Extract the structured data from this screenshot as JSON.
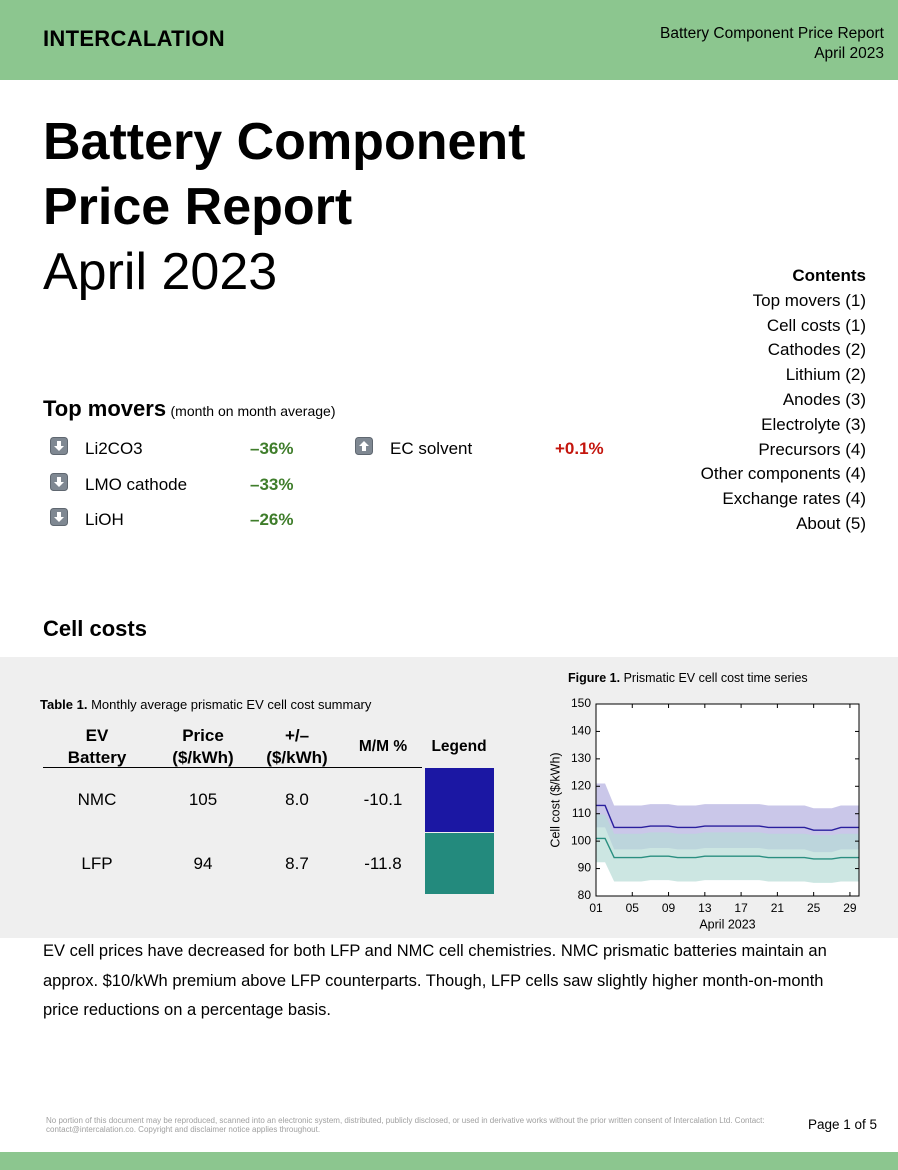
{
  "header": {
    "brand": "INTERCALATION",
    "report_title": "Battery Component Price Report",
    "report_date": "April 2023"
  },
  "title": {
    "lines": [
      "Battery Component",
      "Price Report"
    ],
    "date": "April 2023"
  },
  "contents": {
    "heading": "Contents",
    "items": [
      "Top movers (1)",
      "Cell costs (1)",
      "Cathodes (2)",
      "Lithium (2)",
      "Anodes (3)",
      "Electrolyte (3)",
      "Precursors (4)",
      "Other components (4)",
      "Exchange rates (4)",
      "About (5)"
    ]
  },
  "top_movers": {
    "heading": "Top movers",
    "note": "(month on month average)",
    "items": [
      {
        "name": "Li2CO3",
        "change": "–36%",
        "direction": "down"
      },
      {
        "name": "LMO cathode",
        "change": "–33%",
        "direction": "down"
      },
      {
        "name": "LiOH",
        "change": "–26%",
        "direction": "down"
      },
      {
        "name": "EC solvent",
        "change": "+0.1%",
        "direction": "up"
      }
    ]
  },
  "cell_costs": {
    "heading": "Cell costs",
    "table": {
      "label": "Table 1.",
      "caption": "Monthly average prismatic EV cell cost summary",
      "columns": [
        "EV Battery",
        "Price ($/kWh)",
        "+/– ($/kWh)",
        "M/M %",
        "Legend"
      ],
      "rows": [
        {
          "cells": [
            "NMC",
            "105",
            "8.0",
            "-10.1"
          ],
          "color": "#1b17a3"
        },
        {
          "cells": [
            "LFP",
            "94",
            "8.7",
            "-11.8"
          ],
          "color": "#238a7d"
        }
      ]
    },
    "paragraph": "EV cell prices have decreased for both LFP and NMC cell chemistries. NMC prismatic batteries maintain an approx. $10/kWh premium above LFP counterparts. Though, LFP cells saw slightly higher month-on-month price reductions on a percentage basis."
  },
  "chart_data": {
    "type": "line",
    "figure_label": "Figure 1.",
    "title": "Prismatic EV cell cost time series",
    "xlabel": "April 2023",
    "ylabel": "Cell cost ($/kWh)",
    "x": [
      1,
      2,
      3,
      4,
      5,
      6,
      7,
      8,
      9,
      10,
      11,
      12,
      13,
      14,
      15,
      16,
      17,
      18,
      19,
      20,
      21,
      22,
      23,
      24,
      25,
      26,
      27,
      28,
      29,
      30
    ],
    "xlim": [
      1,
      30
    ],
    "xticks": [
      {
        "value": 1,
        "label": "01"
      },
      {
        "value": 5,
        "label": "05"
      },
      {
        "value": 9,
        "label": "09"
      },
      13,
      17,
      21,
      25,
      29
    ],
    "ylim": [
      80,
      150
    ],
    "yticks": [
      80,
      90,
      100,
      110,
      120,
      130,
      140,
      150
    ],
    "series": [
      {
        "color": "#2a1f9e",
        "band_color": "#b3afdf",
        "error": 8.0,
        "values": [
          113,
          113,
          105,
          105,
          105,
          105,
          105.5,
          105.5,
          105.5,
          105,
          105,
          105,
          105.5,
          105.5,
          105.5,
          105.5,
          105.5,
          105.5,
          105.5,
          105,
          105,
          105,
          105,
          105,
          104,
          104,
          104,
          105,
          105,
          105
        ]
      },
      {
        "color": "#2a8f80",
        "band_color": "#b7dcd5",
        "error": 8.7,
        "values": [
          101,
          101,
          94,
          94,
          94,
          94,
          94.5,
          94.5,
          94.5,
          94,
          94,
          94,
          94.5,
          94.5,
          94.5,
          94.5,
          94.5,
          94.5,
          94.5,
          94,
          94,
          94,
          94,
          94,
          93.5,
          93.5,
          93.5,
          94,
          94,
          94
        ]
      }
    ]
  },
  "footer": {
    "disclaimer": "No portion of this document may be reproduced, scanned into an electronic system, distributed, publicly disclosed, or used in derivative works without the prior written consent of Intercalation Ltd. Contact: contact@intercalation.co. Copyright and disclaimer notice applies throughout.",
    "page": "Page 1 of 5"
  }
}
